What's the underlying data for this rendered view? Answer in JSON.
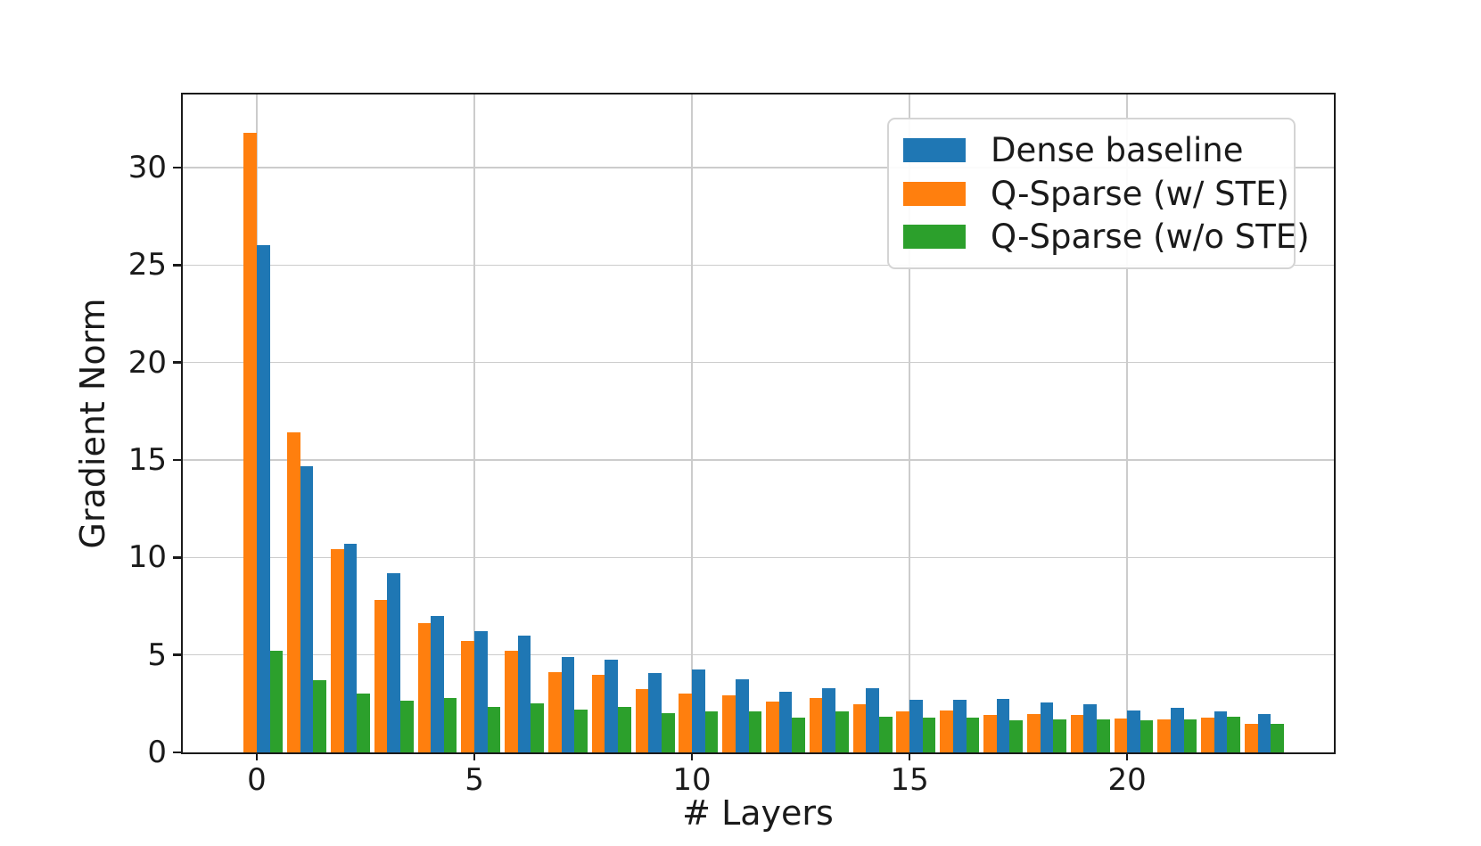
{
  "figure": {
    "background": "#ffffff"
  },
  "axes": {
    "spine_color": "#1a1a1a",
    "grid_color": "#cccccc",
    "yticks": [
      0,
      5,
      10,
      15,
      20,
      25,
      30
    ],
    "xticks": [
      0,
      5,
      10,
      15,
      20
    ]
  },
  "chart_data": {
    "type": "bar",
    "title": "",
    "xlabel": "# Layers",
    "ylabel": "Gradient Norm",
    "categories": [
      0,
      1,
      2,
      3,
      4,
      5,
      6,
      7,
      8,
      9,
      10,
      11,
      12,
      13,
      14,
      15,
      16,
      17,
      18,
      19,
      20,
      21,
      22,
      23
    ],
    "series": [
      {
        "name": "Dense baseline",
        "color": "#1f77b4",
        "column": 1,
        "values": [
          26.0,
          14.7,
          10.7,
          9.2,
          7.0,
          6.2,
          6.0,
          4.9,
          4.75,
          4.05,
          4.25,
          3.75,
          3.1,
          3.3,
          3.3,
          2.7,
          2.7,
          2.75,
          2.55,
          2.45,
          2.15,
          2.3,
          2.1,
          1.95
        ]
      },
      {
        "name": "Q-Sparse (w/ STE)",
        "color": "#ff7f0e",
        "column": 0,
        "values": [
          31.8,
          16.4,
          10.45,
          7.8,
          6.65,
          5.7,
          5.2,
          4.1,
          4.0,
          3.25,
          3.0,
          2.95,
          2.6,
          2.8,
          2.45,
          2.1,
          2.15,
          1.9,
          1.95,
          1.9,
          1.75,
          1.7,
          1.8,
          1.45
        ]
      },
      {
        "name": "Q-Sparse (w/o STE)",
        "color": "#2ca02c",
        "column": 2,
        "values": [
          5.2,
          3.7,
          3.0,
          2.65,
          2.8,
          2.35,
          2.5,
          2.2,
          2.35,
          2.0,
          2.1,
          2.1,
          1.8,
          2.1,
          1.85,
          1.8,
          1.8,
          1.65,
          1.7,
          1.7,
          1.65,
          1.7,
          1.85,
          1.45
        ]
      }
    ],
    "bar_width_units": 0.3,
    "ylim": [
      0,
      33.75
    ],
    "xlim": [
      -1.7,
      24.75
    ],
    "grid": true,
    "legend_position": "upper right",
    "xtick_labels": [
      "0",
      "5",
      "10",
      "15",
      "20"
    ],
    "ytick_labels": [
      "0",
      "5",
      "10",
      "15",
      "20",
      "25",
      "30"
    ]
  }
}
